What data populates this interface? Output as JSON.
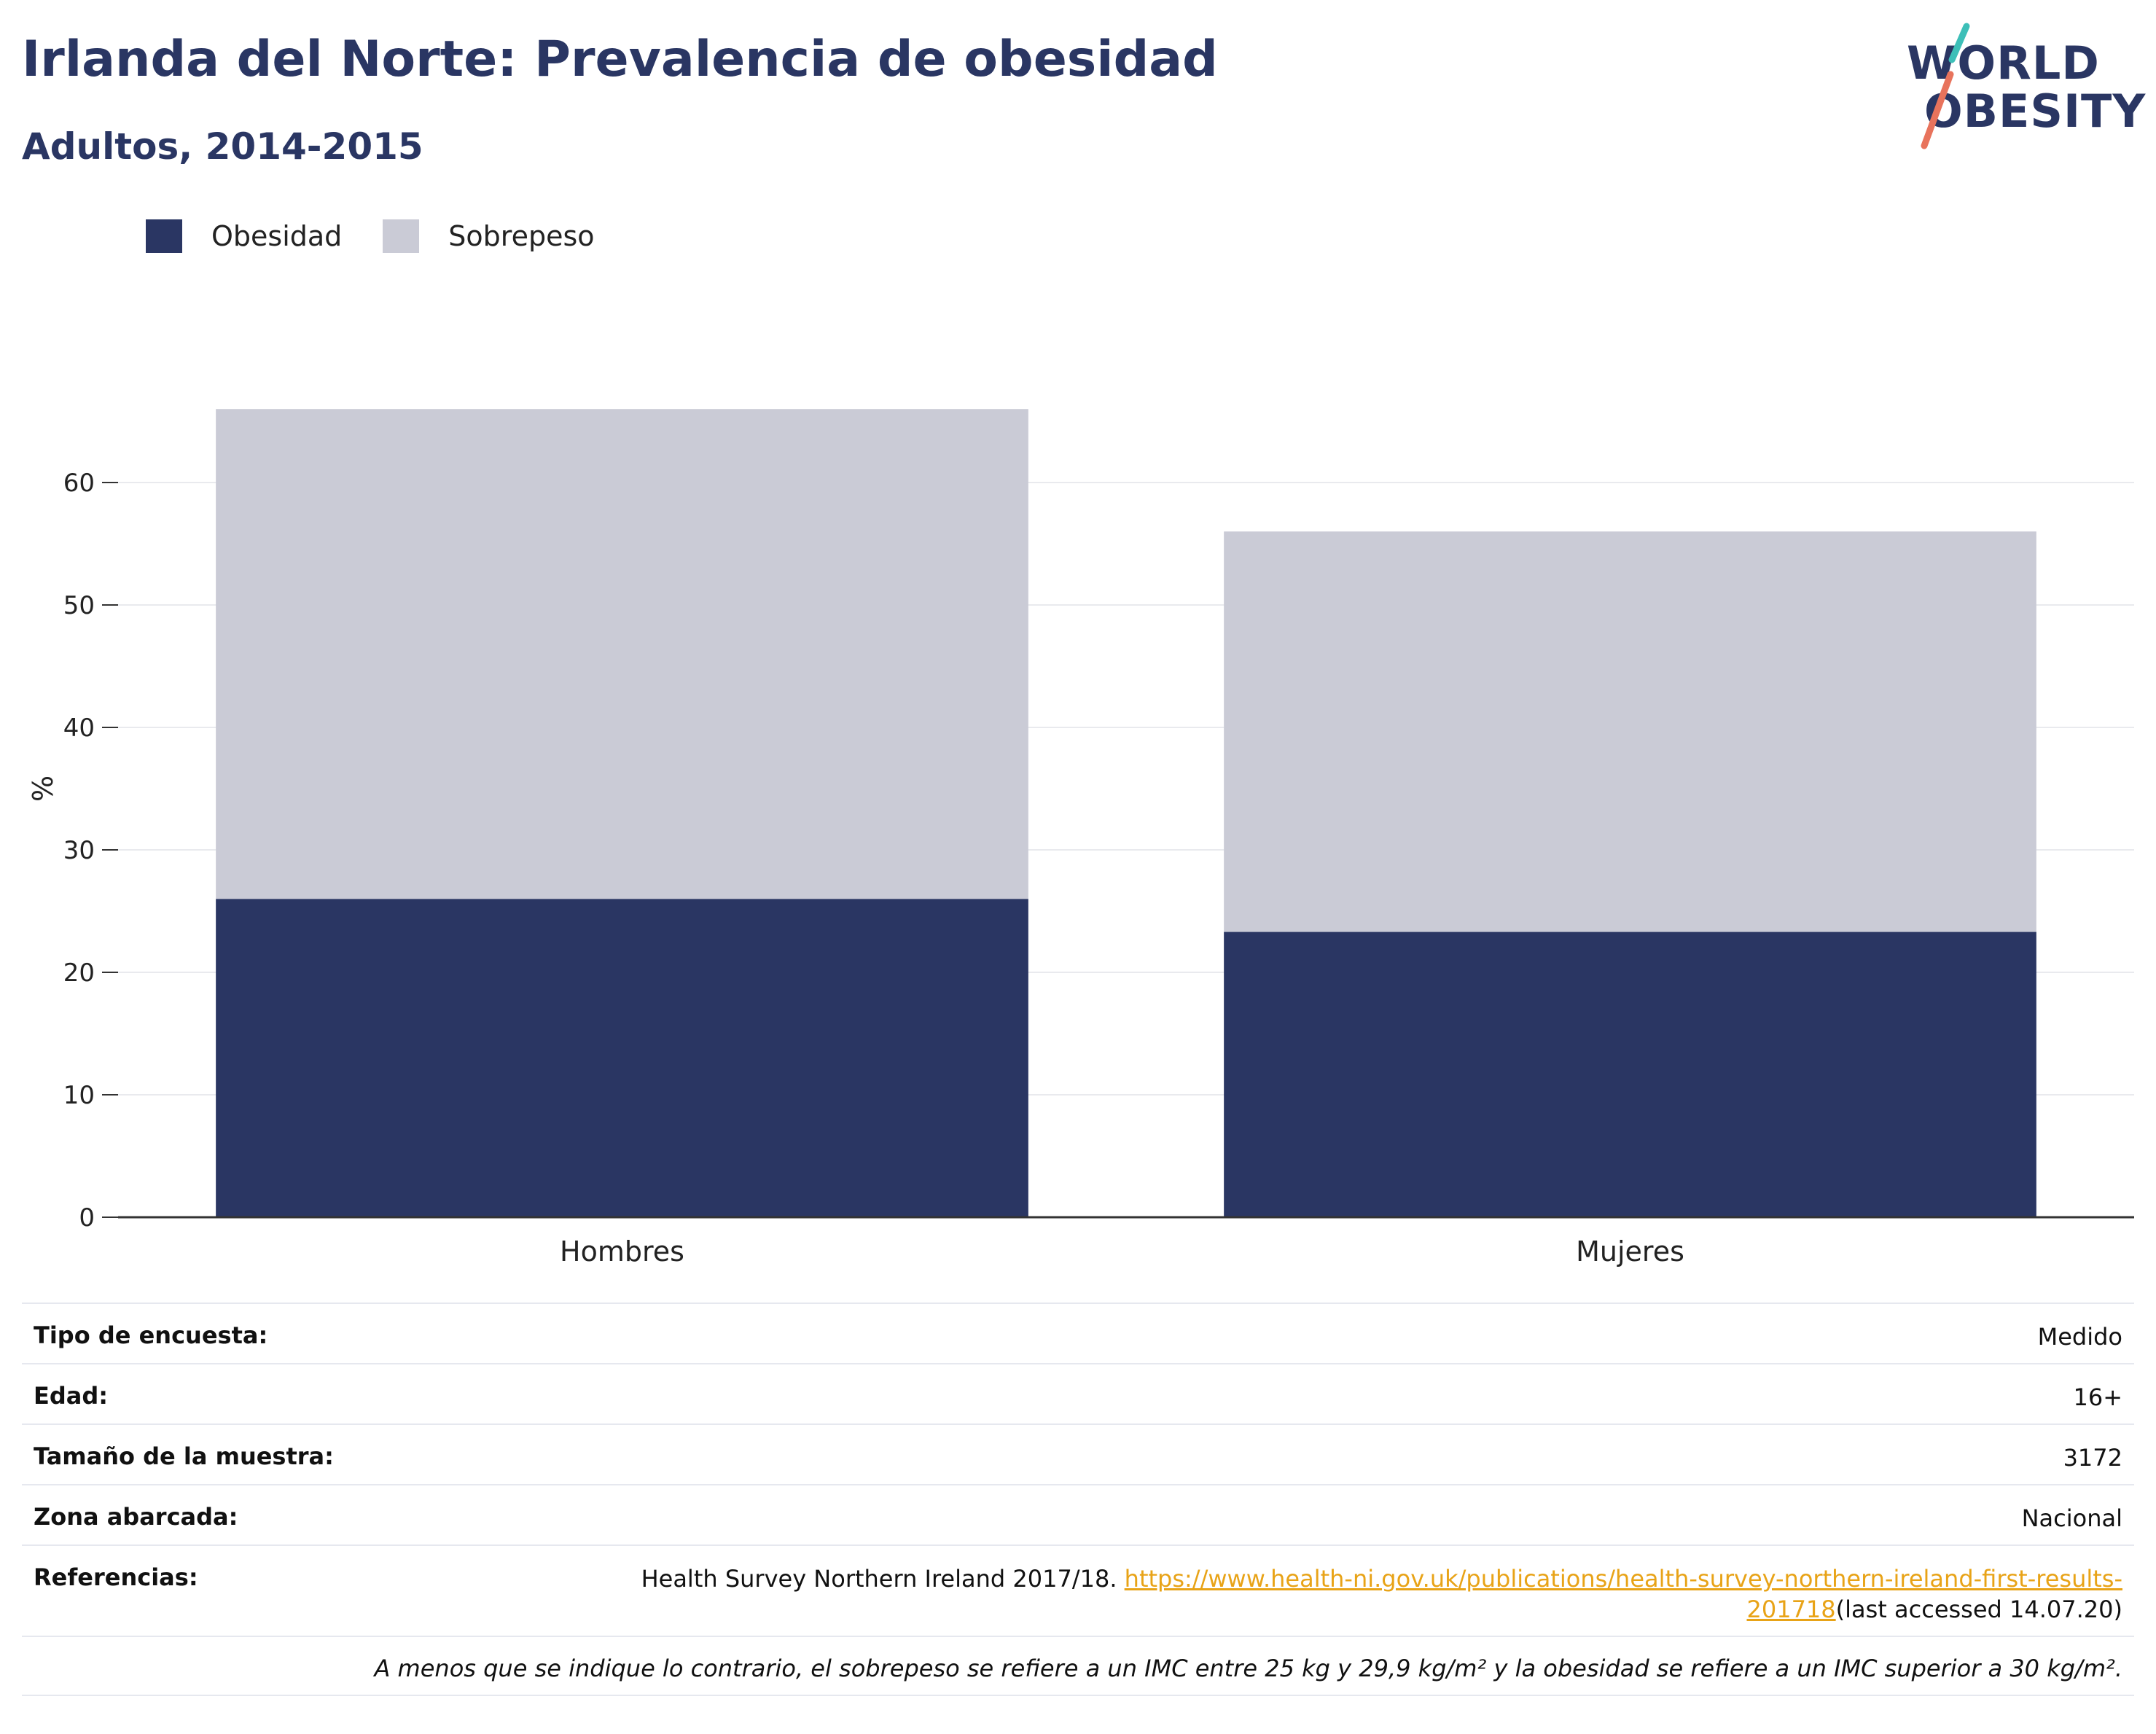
{
  "header": {
    "title": "Irlanda del Norte: Prevalencia de obesidad",
    "subtitle": "Adultos, 2014-2015"
  },
  "logo": {
    "line1": "WORLD",
    "line2": "OBESITY"
  },
  "colors": {
    "obesidad": "#2a3663",
    "sobrepeso": "#cacbd6",
    "link": "#e8a317",
    "logo_teal": "#3dbfb8",
    "logo_coral": "#e8735c"
  },
  "chart_data": {
    "type": "bar",
    "stacked": true,
    "categories": [
      "Hombres",
      "Mujeres"
    ],
    "series": [
      {
        "name": "Obesidad",
        "values": [
          26,
          23.3
        ]
      },
      {
        "name": "Sobrepeso",
        "values": [
          40,
          32.7
        ]
      }
    ],
    "ylabel": "%",
    "xlabel": "",
    "ylim": [
      0,
      70
    ],
    "yticks": [
      0,
      10,
      20,
      30,
      40,
      50,
      60
    ],
    "grid": true,
    "legend_position": "top-left"
  },
  "info": {
    "rows": [
      {
        "label": "Tipo de encuesta:",
        "value": "Medido"
      },
      {
        "label": "Edad:",
        "value": "16+"
      },
      {
        "label": "Tamaño de la muestra:",
        "value": "3172"
      },
      {
        "label": "Zona abarcada:",
        "value": "Nacional"
      }
    ],
    "references": {
      "label": "Referencias:",
      "text": "Health Survey Northern Ireland 2017/18. ",
      "link_part1": "https://www.health-ni.gov.uk/publications/health-survey-northern-ireland-first-results-",
      "link_part2": "201718",
      "suffix": "(last accessed 14.07.20)"
    },
    "note": "A menos que se indique lo contrario, el sobrepeso se refiere a un IMC entre 25 kg y 29,9 kg/m² y la obesidad se refiere a un IMC superior a 30 kg/m²."
  }
}
